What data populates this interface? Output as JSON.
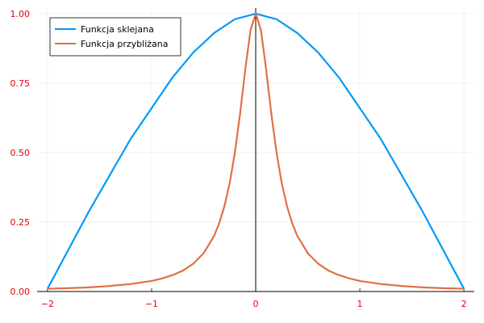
{
  "chart_data": {
    "type": "line",
    "title": "",
    "xlabel": "",
    "ylabel": "",
    "xlim": [
      -2.1,
      2.1
    ],
    "ylim": [
      0,
      1.02
    ],
    "x_ticks": [
      -2,
      -1,
      0,
      1,
      2
    ],
    "x_tick_labels": [
      "−2",
      "−1",
      "0",
      "1",
      "2"
    ],
    "y_ticks": [
      0,
      0.25,
      0.5,
      0.75,
      1.0
    ],
    "y_tick_labels": [
      "0.00",
      "0.25",
      "0.50",
      "0.75",
      "1.00"
    ],
    "grid": true,
    "legend_position": "top-left",
    "tick_label_color": "#e8000b",
    "series": [
      {
        "name": "Funkcja sklejana",
        "color": "#009af9",
        "x": [
          -2.0,
          -1.8,
          -1.6,
          -1.4,
          -1.2,
          -1.0,
          -0.8,
          -0.6,
          -0.4,
          -0.2,
          0.0,
          0.2,
          0.4,
          0.6,
          0.8,
          1.0,
          1.2,
          1.4,
          1.6,
          1.8,
          2.0
        ],
        "y": [
          0.01,
          0.15,
          0.29,
          0.42,
          0.55,
          0.66,
          0.77,
          0.86,
          0.93,
          0.98,
          1.0,
          0.98,
          0.93,
          0.86,
          0.77,
          0.66,
          0.55,
          0.42,
          0.29,
          0.15,
          0.01
        ]
      },
      {
        "name": "Funkcja przybliżana",
        "color": "#e26f46",
        "x": [
          -2.0,
          -1.8,
          -1.6,
          -1.4,
          -1.2,
          -1.0,
          -0.9,
          -0.8,
          -0.7,
          -0.6,
          -0.5,
          -0.4,
          -0.35,
          -0.3,
          -0.25,
          -0.2,
          -0.15,
          -0.1,
          -0.05,
          0.0,
          0.05,
          0.1,
          0.15,
          0.2,
          0.25,
          0.3,
          0.35,
          0.4,
          0.5,
          0.6,
          0.7,
          0.8,
          0.9,
          1.0,
          1.2,
          1.4,
          1.6,
          1.8,
          2.0
        ],
        "y": [
          0.01,
          0.012,
          0.015,
          0.02,
          0.027,
          0.038,
          0.047,
          0.059,
          0.075,
          0.1,
          0.138,
          0.2,
          0.246,
          0.308,
          0.39,
          0.5,
          0.64,
          0.8,
          0.941,
          1.0,
          0.941,
          0.8,
          0.64,
          0.5,
          0.39,
          0.308,
          0.246,
          0.2,
          0.138,
          0.1,
          0.075,
          0.059,
          0.047,
          0.038,
          0.027,
          0.02,
          0.015,
          0.012,
          0.01
        ]
      }
    ]
  }
}
